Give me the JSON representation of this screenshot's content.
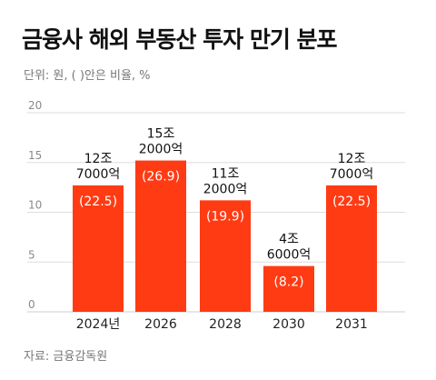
{
  "header": {
    "title": "금융사 해외 부동산 투자 만기 분포",
    "unit_note": "단위: 원, ( )안은 비율, %"
  },
  "footer": {
    "source": "자료: 금융감독원"
  },
  "colors": {
    "bar": "#ff3b14",
    "grid": "#dddddd",
    "axis": "#cccccc"
  },
  "chart_data": {
    "type": "bar",
    "title": "금융사 해외 부동산 투자 만기 분포",
    "xlabel": "",
    "ylabel": "",
    "ylim": [
      0,
      20
    ],
    "yticks": [
      0,
      5,
      10,
      15,
      20
    ],
    "grid": true,
    "categories": [
      "2024년",
      "2026",
      "2028",
      "2030",
      "2031"
    ],
    "values": [
      12.7,
      15.2,
      11.2,
      4.6,
      12.7
    ],
    "value_labels": [
      [
        "12조",
        "7000억"
      ],
      [
        "15조",
        "2000억"
      ],
      [
        "11조",
        "2000억"
      ],
      [
        "4조",
        "6000억"
      ],
      [
        "12조",
        "7000억"
      ]
    ],
    "ratio_labels": [
      "(22.5)",
      "(26.9)",
      "(19.9)",
      "(8.2)",
      "(22.5)"
    ]
  }
}
